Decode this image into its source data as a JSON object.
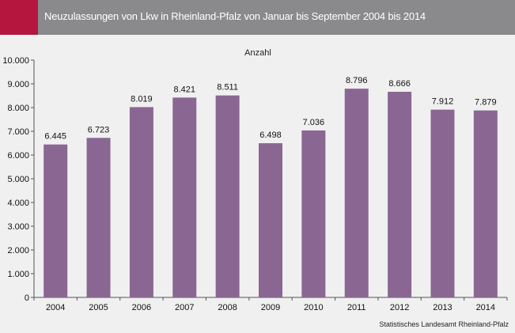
{
  "header": {
    "title": "Neuzulassungen von Lkw in Rheinland-Pfalz von Januar bis September 2004 bis 2014"
  },
  "colors": {
    "accent": "#b5163d",
    "header_bg": "#8a8a8c",
    "bar": "#8a6793",
    "background": "#f0f0f0"
  },
  "source": "Statistisches Landesamt Rheinland-Pfalz",
  "chart_data": {
    "type": "bar",
    "title": "",
    "subtitle": "Anzahl",
    "xlabel": "",
    "ylabel": "",
    "categories": [
      "2004",
      "2005",
      "2006",
      "2007",
      "2008",
      "2009",
      "2010",
      "2011",
      "2012",
      "2013",
      "2014"
    ],
    "values": [
      6445,
      6723,
      8019,
      8421,
      8511,
      6498,
      7036,
      8796,
      8666,
      7912,
      7879
    ],
    "value_labels": [
      "6.445",
      "6.723",
      "8.019",
      "8.421",
      "8.511",
      "6.498",
      "7.036",
      "8.796",
      "8.666",
      "7.912",
      "7.879"
    ],
    "ylim": [
      0,
      10000
    ],
    "yticks": [
      0,
      1000,
      2000,
      3000,
      4000,
      5000,
      6000,
      7000,
      8000,
      9000,
      10000
    ],
    "ytick_labels": [
      "0",
      "1.000",
      "2.000",
      "3.000",
      "4.000",
      "5.000",
      "6.000",
      "7.000",
      "8.000",
      "9.000",
      "10.000"
    ],
    "grid": false,
    "legend": "none"
  }
}
